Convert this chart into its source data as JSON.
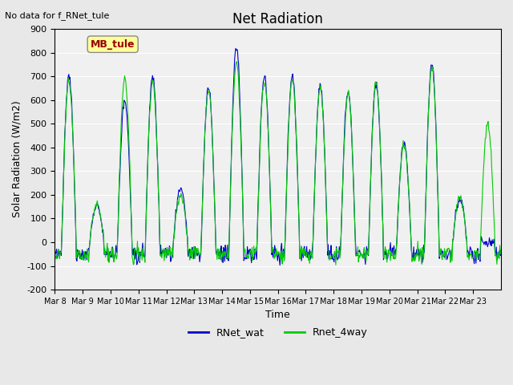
{
  "title": "Net Radiation",
  "xlabel": "Time",
  "ylabel": "Solar Radiation (W/m2)",
  "top_left_text": "No data for f_RNet_tule",
  "legend_label_text": "MB_tule",
  "ylim": [
    -200,
    900
  ],
  "yticks": [
    -200,
    -100,
    0,
    100,
    200,
    300,
    400,
    500,
    600,
    700,
    800,
    900
  ],
  "xtick_labels": [
    "Mar 8",
    "Mar 9",
    "Mar 10",
    "Mar 11",
    "Mar 12",
    "Mar 13",
    "Mar 14",
    "Mar 15",
    "Mar 16",
    "Mar 17",
    "Mar 18",
    "Mar 19",
    "Mar 20",
    "Mar 21",
    "Mar 22",
    "Mar 23"
  ],
  "line1_label": "RNet_wat",
  "line2_label": "Rnet_4way",
  "line1_color": "#0000cc",
  "line2_color": "#00cc00",
  "bg_color": "#e8e8e8",
  "plot_bg_color": "#f0f0f0",
  "grid_color": "#ffffff",
  "legend_box_color": "#ffff99",
  "legend_text_color": "#990000",
  "n_days": 16,
  "pts_per_day": 48,
  "blue_peaks": [
    700,
    150,
    600,
    700,
    220,
    650,
    820,
    700,
    700,
    660,
    640,
    670,
    420,
    750,
    180,
    0
  ],
  "green_peaks": [
    680,
    160,
    690,
    680,
    200,
    640,
    760,
    680,
    680,
    650,
    630,
    680,
    410,
    740,
    190,
    500
  ]
}
